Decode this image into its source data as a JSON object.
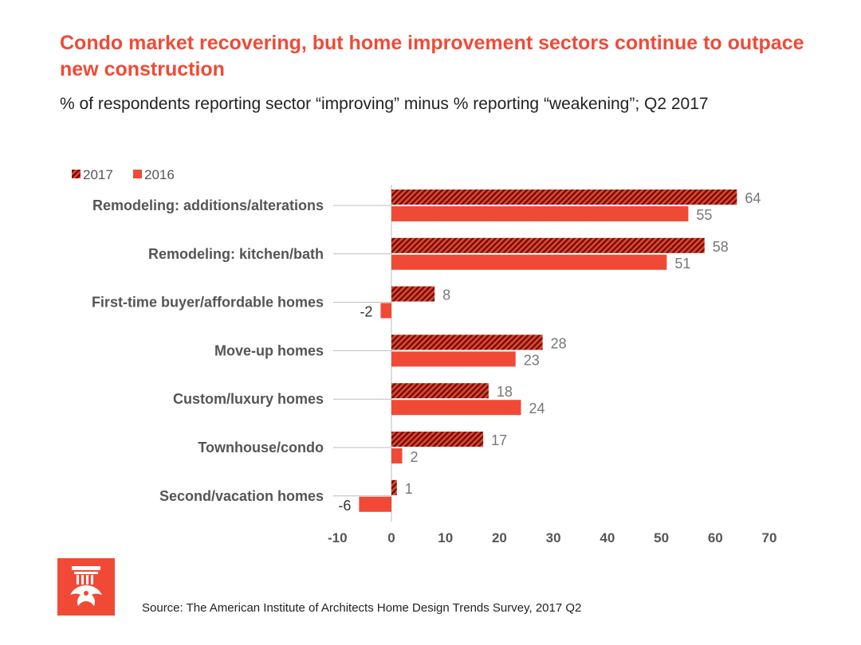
{
  "header": {
    "title": "Condo market recovering, but home improvement sectors continue to outpace new construction",
    "subtitle": "% of respondents reporting sector “improving” minus % reporting “weakening”; Q2 2017"
  },
  "source": "Source: The American Institute of Architects Home Design Trends Survey, 2017 Q2",
  "colors": {
    "accent": "#f04a37",
    "series2017": "#c8281c",
    "series2016": "#f04a37"
  },
  "chart_data": {
    "type": "bar",
    "orientation": "horizontal",
    "title": "Condo market recovering, but home improvement sectors continue to outpace new construction",
    "subtitle": "% of respondents reporting sector “improving” minus % reporting “weakening”; Q2 2017",
    "categories": [
      "Remodeling: additions/alterations",
      "Remodeling: kitchen/bath",
      "First-time buyer/affordable homes",
      "Move-up homes",
      "Custom/luxury homes",
      "Townhouse/condo",
      "Second/vacation homes"
    ],
    "series": [
      {
        "name": "2017",
        "values": [
          64,
          58,
          8,
          28,
          18,
          17,
          1
        ],
        "pattern": "hatched",
        "color": "#c8281c"
      },
      {
        "name": "2016",
        "values": [
          55,
          51,
          -2,
          23,
          24,
          2,
          -6
        ],
        "pattern": "solid",
        "color": "#f04a37"
      }
    ],
    "xlim": [
      -10,
      70
    ],
    "xticks": [
      "-10",
      "0",
      "10",
      "20",
      "30",
      "40",
      "50",
      "60",
      "70"
    ],
    "legend": "top-left",
    "grid": false
  }
}
